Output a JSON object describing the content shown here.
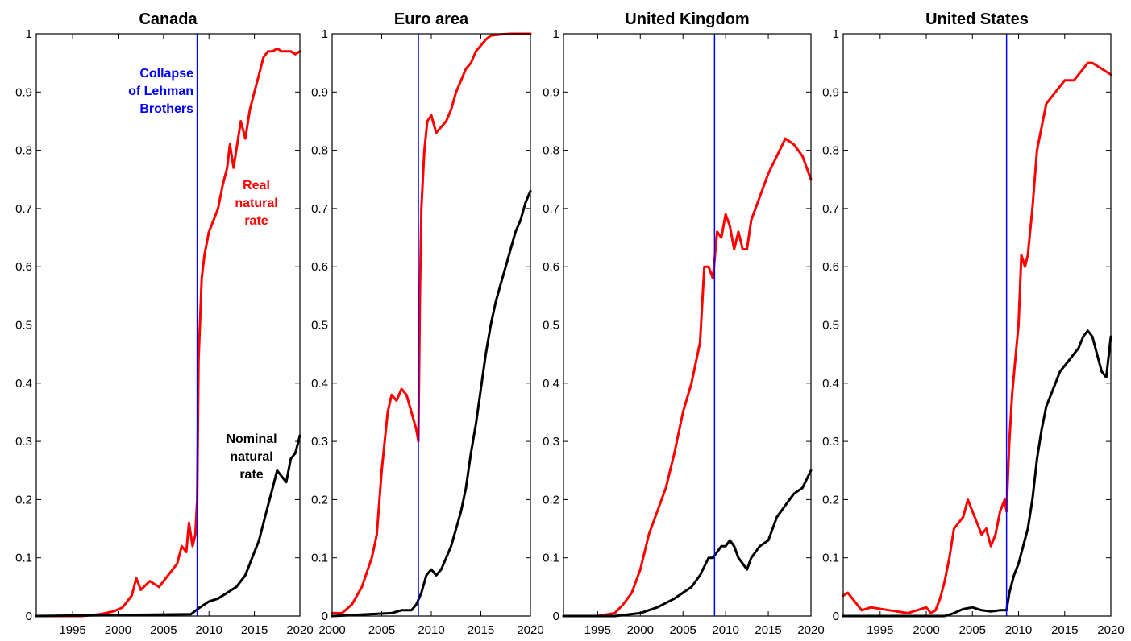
{
  "chart_data": [
    {
      "type": "line",
      "title": "Canada",
      "xlim": [
        1991,
        2020
      ],
      "ylim": [
        0,
        1
      ],
      "xticks": [
        1995,
        2000,
        2005,
        2010,
        2015,
        2020
      ],
      "yticks": [
        0,
        0.1,
        0.2,
        0.3,
        0.4,
        0.5,
        0.6,
        0.7,
        0.8,
        0.9,
        1
      ],
      "ytick_labels": [
        "0",
        "0.1",
        "0.2",
        "0.3",
        "0.4",
        "0.5",
        "0.6",
        "0.7",
        "0.8",
        "0.9",
        "1"
      ],
      "grid": false,
      "event": {
        "x": 2008.7,
        "label_lines": [
          "Collapse",
          "of Lehman",
          "Brothers"
        ],
        "color": "#0000ff"
      },
      "series": [
        {
          "name": "Real natural rate",
          "label_lines": [
            "Real",
            "natural",
            "rate"
          ],
          "color": "#ff0000",
          "x": [
            1991,
            1996,
            1998,
            1999.5,
            2000.5,
            2001.5,
            2002,
            2002.5,
            2003.5,
            2004.5,
            2005.5,
            2006.5,
            2007,
            2007.5,
            2007.8,
            2008.2,
            2008.5,
            2008.7,
            2008.85,
            2009,
            2009.2,
            2009.5,
            2010,
            2010.5,
            2011,
            2011.5,
            2012,
            2012.3,
            2012.7,
            2013,
            2013.5,
            2014,
            2014.5,
            2015,
            2015.5,
            2016,
            2016.5,
            2017,
            2017.5,
            2018,
            2019,
            2019.5,
            2020
          ],
          "values": [
            0.0,
            0.0,
            0.003,
            0.008,
            0.015,
            0.035,
            0.065,
            0.045,
            0.06,
            0.05,
            0.07,
            0.09,
            0.12,
            0.11,
            0.16,
            0.12,
            0.14,
            0.2,
            0.44,
            0.5,
            0.58,
            0.62,
            0.66,
            0.68,
            0.7,
            0.74,
            0.77,
            0.81,
            0.77,
            0.8,
            0.85,
            0.82,
            0.87,
            0.9,
            0.93,
            0.96,
            0.97,
            0.97,
            0.975,
            0.97,
            0.97,
            0.965,
            0.97
          ]
        },
        {
          "name": "Nominal natural rate",
          "label_lines": [
            "Nominal",
            "natural",
            "rate"
          ],
          "color": "#000000",
          "x": [
            1991,
            2008,
            2009,
            2010,
            2011,
            2012,
            2013,
            2014,
            2015,
            2015.5,
            2016,
            2016.5,
            2017,
            2017.5,
            2018,
            2018.5,
            2019,
            2019.5,
            2020
          ],
          "values": [
            0.0,
            0.003,
            0.015,
            0.025,
            0.03,
            0.04,
            0.05,
            0.07,
            0.11,
            0.13,
            0.16,
            0.19,
            0.22,
            0.25,
            0.24,
            0.23,
            0.27,
            0.28,
            0.31
          ]
        }
      ]
    },
    {
      "type": "line",
      "title": "Euro area",
      "xlim": [
        2000,
        2020
      ],
      "ylim": [
        0,
        1
      ],
      "xticks": [
        2000,
        2005,
        2010,
        2015,
        2020
      ],
      "yticks": [
        0,
        0.1,
        0.2,
        0.3,
        0.4,
        0.5,
        0.6,
        0.7,
        0.8,
        0.9,
        1
      ],
      "ytick_labels": [
        "0",
        "0.1",
        "0.2",
        "0.3",
        "0.4",
        "0.5",
        "0.6",
        "0.7",
        "0.8",
        "0.9",
        "1"
      ],
      "grid": false,
      "event": {
        "x": 2008.7,
        "color": "#0000ff"
      },
      "series": [
        {
          "name": "Real natural rate",
          "color": "#ff0000",
          "x": [
            2000,
            2001,
            2002,
            2003,
            2004,
            2004.5,
            2005,
            2005.3,
            2005.6,
            2006,
            2006.5,
            2007,
            2007.5,
            2008,
            2008.5,
            2008.7,
            2008.85,
            2009,
            2009.3,
            2009.6,
            2010,
            2010.5,
            2011,
            2011.5,
            2012,
            2012.5,
            2013,
            2013.5,
            2014,
            2014.5,
            2015,
            2015.5,
            2016,
            2017,
            2018,
            2019,
            2020
          ],
          "values": [
            0.005,
            0.005,
            0.02,
            0.05,
            0.1,
            0.14,
            0.25,
            0.3,
            0.35,
            0.38,
            0.37,
            0.39,
            0.38,
            0.35,
            0.32,
            0.3,
            0.55,
            0.7,
            0.8,
            0.85,
            0.86,
            0.83,
            0.84,
            0.85,
            0.87,
            0.9,
            0.92,
            0.94,
            0.95,
            0.97,
            0.98,
            0.99,
            0.997,
            0.999,
            1.0,
            1.0,
            1.0
          ]
        },
        {
          "name": "Nominal natural rate",
          "color": "#000000",
          "x": [
            2000,
            2006,
            2007,
            2008,
            2008.5,
            2009,
            2009.5,
            2010,
            2010.5,
            2011,
            2011.5,
            2012,
            2012.5,
            2013,
            2013.5,
            2014,
            2014.5,
            2015,
            2015.5,
            2016,
            2016.5,
            2017,
            2017.5,
            2018,
            2018.5,
            2019,
            2019.5,
            2020
          ],
          "values": [
            0.0,
            0.005,
            0.01,
            0.01,
            0.02,
            0.04,
            0.07,
            0.08,
            0.07,
            0.08,
            0.1,
            0.12,
            0.15,
            0.18,
            0.22,
            0.28,
            0.33,
            0.39,
            0.45,
            0.5,
            0.54,
            0.57,
            0.6,
            0.63,
            0.66,
            0.68,
            0.71,
            0.73
          ]
        }
      ]
    },
    {
      "type": "line",
      "title": "United Kingdom",
      "xlim": [
        1991,
        2020
      ],
      "ylim": [
        0,
        1
      ],
      "xticks": [
        1995,
        2000,
        2005,
        2010,
        2015,
        2020
      ],
      "yticks": [
        0,
        0.1,
        0.2,
        0.3,
        0.4,
        0.5,
        0.6,
        0.7,
        0.8,
        0.9,
        1
      ],
      "ytick_labels": [
        "0",
        "0.1",
        "0.2",
        "0.3",
        "0.4",
        "0.5",
        "0.6",
        "0.7",
        "0.8",
        "0.9",
        "1"
      ],
      "grid": false,
      "event": {
        "x": 2008.7,
        "color": "#0000ff"
      },
      "series": [
        {
          "name": "Real natural rate",
          "color": "#ff0000",
          "x": [
            1991,
            1995,
            1997,
            1998,
            1999,
            2000,
            2001,
            2002,
            2003,
            2004,
            2005,
            2006,
            2007,
            2007.5,
            2008,
            2008.5,
            2009,
            2009.5,
            2010,
            2010.5,
            2011,
            2011.5,
            2012,
            2012.5,
            2013,
            2014,
            2015,
            2016,
            2017,
            2018,
            2019,
            2020
          ],
          "values": [
            0.0,
            0.0,
            0.005,
            0.02,
            0.04,
            0.08,
            0.14,
            0.18,
            0.22,
            0.28,
            0.35,
            0.4,
            0.47,
            0.6,
            0.6,
            0.58,
            0.66,
            0.65,
            0.69,
            0.67,
            0.63,
            0.66,
            0.63,
            0.63,
            0.68,
            0.72,
            0.76,
            0.79,
            0.82,
            0.81,
            0.79,
            0.75
          ]
        },
        {
          "name": "Nominal natural rate",
          "color": "#000000",
          "x": [
            1991,
            1997,
            2000,
            2002,
            2004,
            2006,
            2007,
            2008,
            2008.5,
            2009,
            2009.5,
            2010,
            2010.5,
            2011,
            2011.5,
            2012,
            2012.5,
            2013,
            2014,
            2015,
            2016,
            2017,
            2018,
            2019,
            2020
          ],
          "values": [
            0.0,
            0.0,
            0.005,
            0.015,
            0.03,
            0.05,
            0.07,
            0.1,
            0.1,
            0.11,
            0.12,
            0.12,
            0.13,
            0.12,
            0.1,
            0.09,
            0.08,
            0.1,
            0.12,
            0.13,
            0.17,
            0.19,
            0.21,
            0.22,
            0.25
          ]
        }
      ]
    },
    {
      "type": "line",
      "title": "United States",
      "xlim": [
        1991,
        2020
      ],
      "ylim": [
        0,
        1
      ],
      "xticks": [
        1995,
        2000,
        2005,
        2010,
        2015,
        2020
      ],
      "yticks": [
        0,
        0.1,
        0.2,
        0.3,
        0.4,
        0.5,
        0.6,
        0.7,
        0.8,
        0.9,
        1
      ],
      "ytick_labels": [
        "0",
        "0.1",
        "0.2",
        "0.3",
        "0.4",
        "0.5",
        "0.6",
        "0.7",
        "0.8",
        "0.9",
        "1"
      ],
      "grid": false,
      "event": {
        "x": 2008.7,
        "color": "#0000ff"
      },
      "series": [
        {
          "name": "Real natural rate",
          "color": "#ff0000",
          "x": [
            1991,
            1991.5,
            1992,
            1993,
            1994,
            1996,
            1998,
            1999,
            2000,
            2000.5,
            2001,
            2001.5,
            2002,
            2002.5,
            2003,
            2004,
            2004.5,
            2005,
            2005.5,
            2006,
            2006.5,
            2007,
            2007.5,
            2008,
            2008.5,
            2008.7,
            2009,
            2009.3,
            2009.7,
            2010,
            2010.3,
            2010.7,
            2011,
            2011.5,
            2012,
            2013,
            2014,
            2015,
            2016,
            2017,
            2017.5,
            2018,
            2019,
            2020
          ],
          "values": [
            0.035,
            0.04,
            0.03,
            0.01,
            0.015,
            0.01,
            0.005,
            0.01,
            0.015,
            0.005,
            0.01,
            0.03,
            0.06,
            0.1,
            0.15,
            0.17,
            0.2,
            0.18,
            0.16,
            0.14,
            0.15,
            0.12,
            0.14,
            0.18,
            0.2,
            0.18,
            0.3,
            0.38,
            0.45,
            0.5,
            0.62,
            0.6,
            0.62,
            0.7,
            0.8,
            0.88,
            0.9,
            0.92,
            0.92,
            0.94,
            0.95,
            0.95,
            0.94,
            0.93
          ]
        },
        {
          "name": "Nominal natural rate",
          "color": "#000000",
          "x": [
            1991,
            2002,
            2003,
            2004,
            2005,
            2006,
            2007,
            2008,
            2008.7,
            2009,
            2009.5,
            2010,
            2010.5,
            2011,
            2011.5,
            2012,
            2012.5,
            2013,
            2013.5,
            2014,
            2014.5,
            2015,
            2015.5,
            2016,
            2016.5,
            2017,
            2017.5,
            2018,
            2018.5,
            2019,
            2019.5,
            2020
          ],
          "values": [
            0.0,
            0.0,
            0.005,
            0.012,
            0.015,
            0.01,
            0.008,
            0.01,
            0.01,
            0.04,
            0.07,
            0.09,
            0.12,
            0.15,
            0.2,
            0.27,
            0.32,
            0.36,
            0.38,
            0.4,
            0.42,
            0.43,
            0.44,
            0.45,
            0.46,
            0.48,
            0.49,
            0.48,
            0.45,
            0.42,
            0.41,
            0.48
          ]
        }
      ]
    }
  ]
}
